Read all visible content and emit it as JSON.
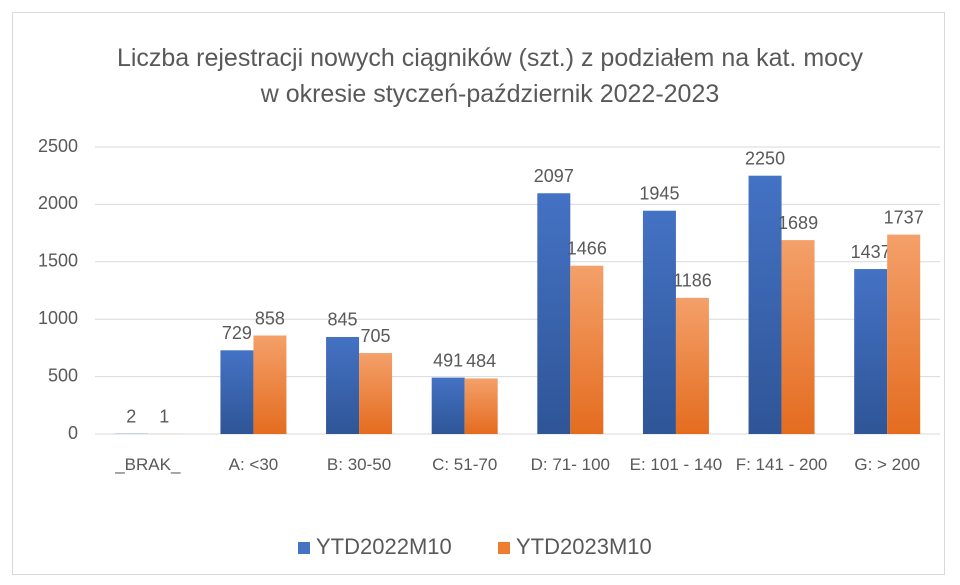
{
  "chart_data": {
    "type": "bar",
    "title": "Liczba rejestracji nowych ciągników (szt.) z podziałem na kat. mocy w okresie styczeń-październik 2022-2023",
    "categories": [
      "_BRAK_",
      "A: <30",
      "B: 30-50",
      "C: 51-70",
      "D: 71- 100",
      "E: 101 - 140",
      "F: 141 - 200",
      "G: > 200"
    ],
    "series": [
      {
        "name": "YTD2022M10",
        "color": "#4472c4",
        "values": [
          2,
          729,
          845,
          491,
          2097,
          1945,
          2250,
          1437
        ]
      },
      {
        "name": "YTD2023M10",
        "color": "#ed7d31",
        "values": [
          1,
          858,
          705,
          484,
          1466,
          1186,
          1689,
          1737
        ]
      }
    ],
    "ylim": [
      0,
      2500
    ],
    "yticks": [
      0,
      500,
      1000,
      1500,
      2000,
      2500
    ],
    "grid": true,
    "legend": "bottom"
  }
}
